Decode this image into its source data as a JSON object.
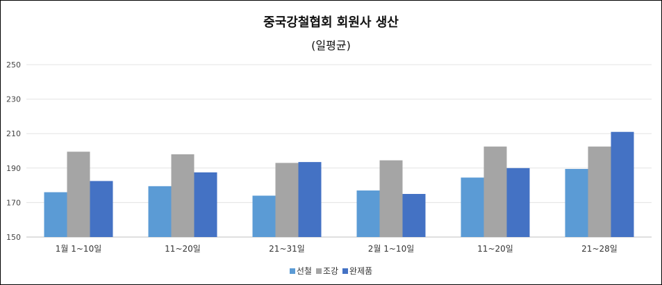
{
  "chart_data": {
    "type": "bar",
    "title": "중국강철협회 회원사 생산",
    "subtitle": "(일평균)",
    "categories": [
      "1월 1~10일",
      "11~20일",
      "21~31일",
      "2월 1~10일",
      "11~20일",
      "21~28일"
    ],
    "series": [
      {
        "name": "선철",
        "color": "#5b9bd5",
        "values": [
          176,
          179.5,
          174,
          177,
          184.5,
          189.5
        ]
      },
      {
        "name": "조강",
        "color": "#a5a5a5",
        "values": [
          199.5,
          198,
          193,
          194.5,
          202.5,
          202.5
        ]
      },
      {
        "name": "완제품",
        "color": "#4472c4",
        "values": [
          182.5,
          187.5,
          193.5,
          175,
          190,
          211
        ]
      }
    ],
    "yticks": [
      150,
      170,
      190,
      210,
      230,
      250
    ],
    "ylim": [
      150,
      250
    ],
    "grid": true,
    "legend": "bottom"
  }
}
